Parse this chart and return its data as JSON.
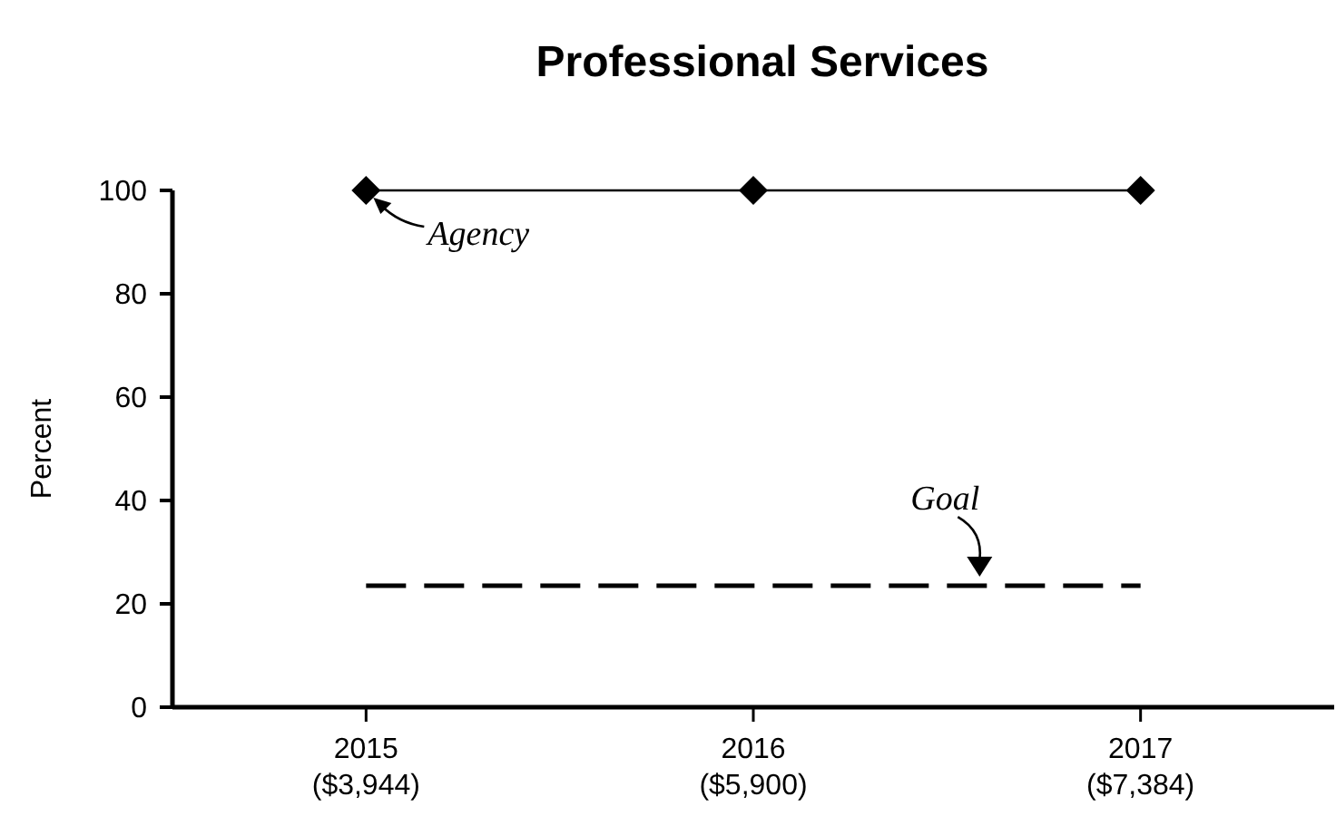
{
  "chart_data": {
    "type": "line",
    "title": "Professional Services",
    "ylabel": "Percent",
    "categories": [
      "2015\n($3,944)",
      "2016\n($5,900)",
      "2017\n($7,384)"
    ],
    "series": [
      {
        "name": "Agency",
        "color": "#000000",
        "values": [
          100,
          100,
          100
        ],
        "marker": "diamond",
        "line_style": "solid"
      },
      {
        "name": "Goal",
        "color": "#000000",
        "values": [
          23.5,
          23.5,
          23.5
        ],
        "marker": "none",
        "line_style": "dashed"
      }
    ],
    "ylim": [
      0,
      100
    ],
    "yticks": [
      0,
      20,
      40,
      60,
      80,
      100
    ],
    "grid": false
  }
}
